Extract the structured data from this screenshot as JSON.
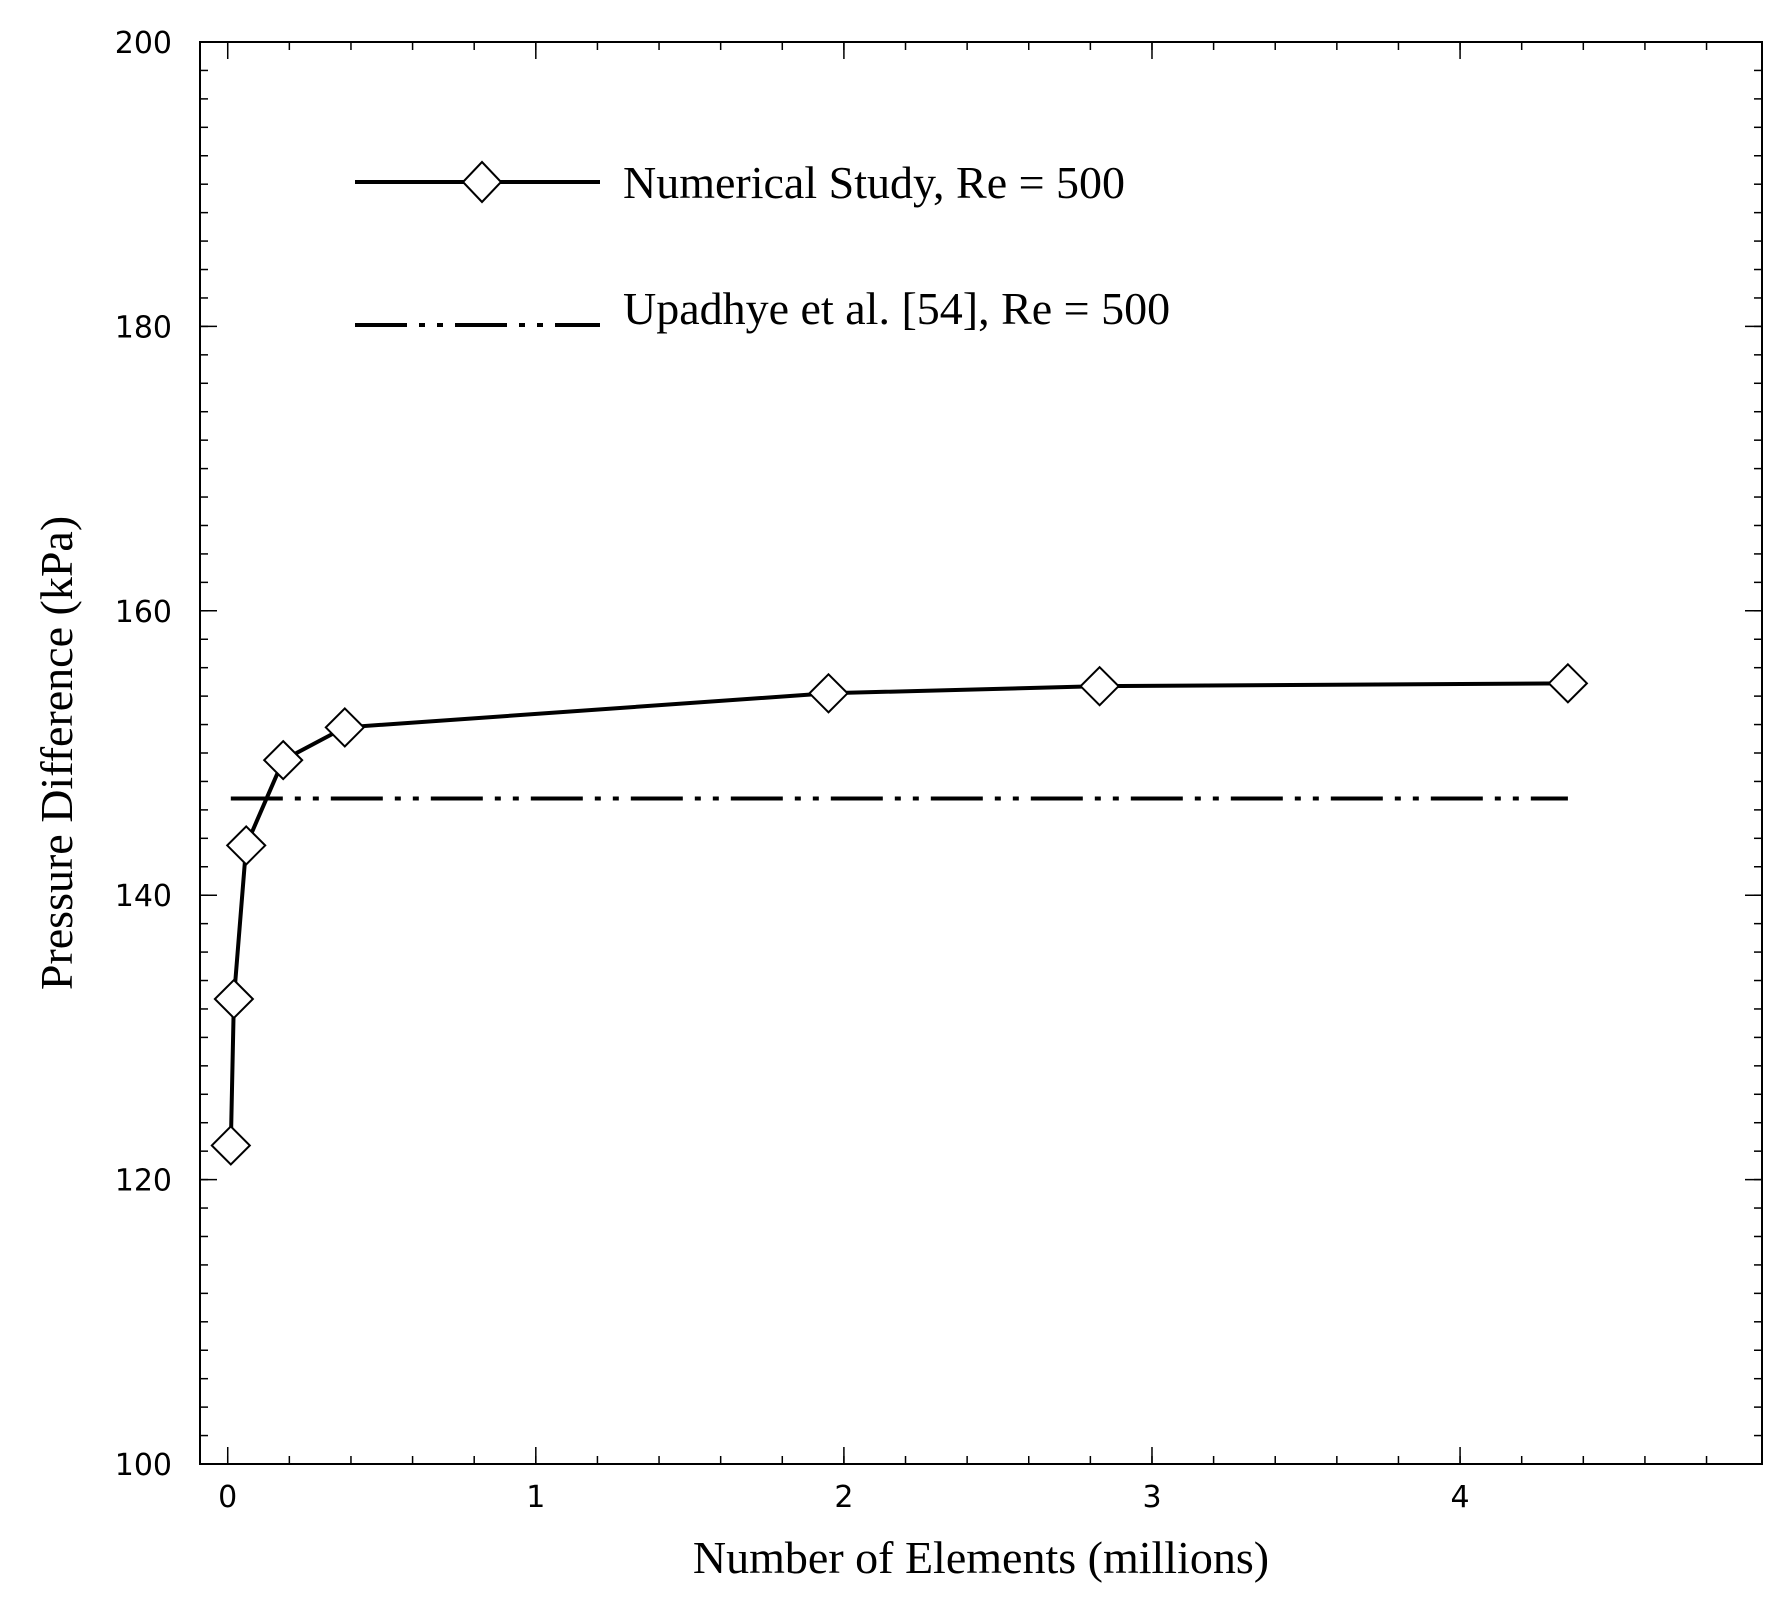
{
  "chart_data": {
    "type": "line",
    "xlabel": "Number of Elements (millions)",
    "ylabel": "Pressure Difference (kPa)",
    "xlim": [
      -0.09,
      4.98
    ],
    "ylim": [
      100,
      200
    ],
    "xticks": [
      0,
      1,
      2,
      3,
      4
    ],
    "yticks": [
      100,
      120,
      140,
      160,
      180,
      200
    ],
    "xtick_labels": [
      "0",
      "1",
      "2",
      "3",
      "4"
    ],
    "ytick_labels": [
      "100",
      "120",
      "140",
      "160",
      "180",
      "200"
    ],
    "x_minor_step": 0.2,
    "y_minor_step": 2,
    "legend_position": "top-left",
    "series": [
      {
        "name": "Numerical Study, Re = 500",
        "style": "solid-diamond",
        "x": [
          0.01,
          0.02,
          0.06,
          0.18,
          0.38,
          1.95,
          2.83,
          4.35
        ],
        "y": [
          122.4,
          132.7,
          143.5,
          149.5,
          151.8,
          154.2,
          154.7,
          154.9
        ]
      },
      {
        "name": "Upadhye et al. [54], Re = 500",
        "style": "dash-dot-dot",
        "x": [
          0.01,
          4.35
        ],
        "y": [
          146.8,
          146.8
        ]
      }
    ]
  }
}
